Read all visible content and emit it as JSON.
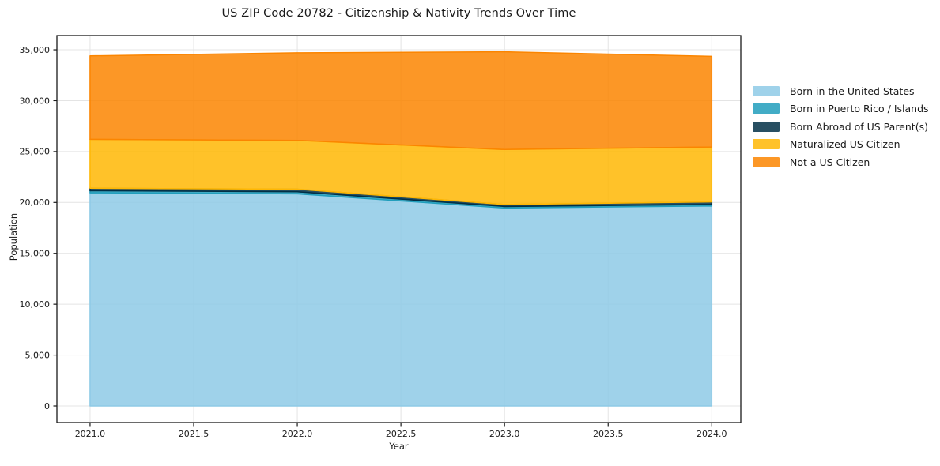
{
  "title": "US ZIP Code 20782 - Citizenship & Nativity Trends Over Time",
  "chart_data": {
    "type": "area",
    "stacked": true,
    "title": "US ZIP Code 20782 - Citizenship & Nativity Trends Over Time",
    "xlabel": "Year",
    "ylabel": "Population",
    "x": [
      2021,
      2022,
      2023,
      2024
    ],
    "series": [
      {
        "name": "Born in the United States",
        "color": "#8ecae6",
        "values": [
          20950,
          20850,
          19450,
          19650
        ]
      },
      {
        "name": "Born in Puerto Rico / Islands",
        "color": "#219ebc",
        "values": [
          200,
          200,
          150,
          150
        ]
      },
      {
        "name": "Born Abroad of US Parent(s)",
        "color": "#023047",
        "values": [
          250,
          250,
          200,
          250
        ]
      },
      {
        "name": "Naturalized US Citizen",
        "color": "#ffb703",
        "values": [
          4800,
          4800,
          5400,
          5400
        ]
      },
      {
        "name": "Not a US Citizen",
        "color": "#fb8500",
        "values": [
          8200,
          8600,
          9600,
          8900
        ]
      }
    ],
    "fill_opacity": 0.85,
    "xlim": [
      2020.84,
      2024.14
    ],
    "ylim": [
      -1630,
      36400
    ],
    "xticks": {
      "values": [
        2021,
        2021.5,
        2022,
        2022.5,
        2023,
        2023.5,
        2024
      ],
      "labels": [
        "2021.0",
        "2021.5",
        "2022.0",
        "2022.5",
        "2023.0",
        "2023.5",
        "2024.0"
      ]
    },
    "yticks": {
      "values": [
        0,
        5000,
        10000,
        15000,
        20000,
        25000,
        30000,
        35000
      ],
      "labels": [
        "0",
        "5,000",
        "10,000",
        "15,000",
        "20,000",
        "25,000",
        "30,000",
        "35,000"
      ]
    },
    "grid": true,
    "legend_position": "outside-right"
  },
  "style": {
    "spine_color": "#1a1a1a",
    "grid_color": "#e4e4e4",
    "tick_text_color": "#1a1a1a"
  }
}
